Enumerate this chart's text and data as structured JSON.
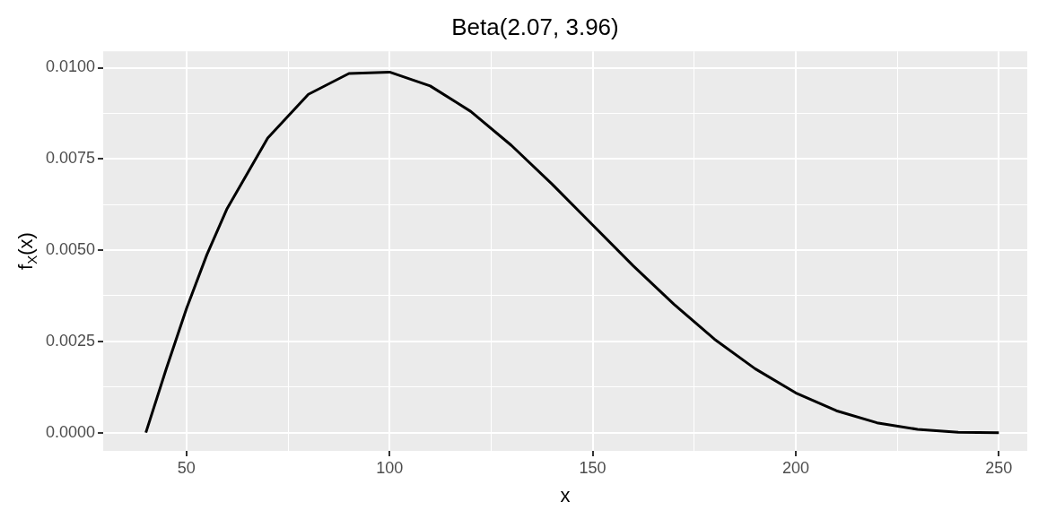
{
  "chart_data": {
    "type": "line",
    "title": "Beta(2.07, 3.96)",
    "xlabel": "x",
    "ylabel": "f$_{X}$(x)",
    "x": [
      40,
      45,
      50,
      55,
      60,
      70,
      80,
      90,
      100,
      110,
      120,
      130,
      140,
      150,
      160,
      170,
      180,
      190,
      200,
      210,
      220,
      230,
      240,
      250
    ],
    "values": [
      0,
      0.00174,
      0.0034,
      0.00487,
      0.00614,
      0.00807,
      0.00927,
      0.00984,
      0.00988,
      0.0095,
      0.0088,
      0.00787,
      0.00681,
      0.00569,
      0.00457,
      0.00352,
      0.00256,
      0.00175,
      0.00109,
      0.0006,
      0.00027,
      9e-05,
      1e-05,
      0
    ],
    "color": "#000000",
    "xlim": [
      29.5,
      257
    ],
    "xticks": [
      50,
      {
        "value": 75,
        "label": null
      },
      100,
      {
        "value": 125,
        "label": null
      },
      150,
      {
        "value": 175,
        "label": null
      },
      200,
      {
        "value": 225,
        "label": null
      },
      250
    ],
    "ylim": [
      -0.0005,
      0.01045
    ],
    "yticks": [
      {
        "value": 0,
        "label": "0.0000"
      },
      {
        "value": 0.00125,
        "label": null
      },
      {
        "value": 0.0025,
        "label": "0.0025"
      },
      {
        "value": 0.00375,
        "label": null
      },
      {
        "value": 0.005,
        "label": "0.0050"
      },
      {
        "value": 0.00625,
        "label": null
      },
      {
        "value": 0.0075,
        "label": "0.0075"
      },
      {
        "value": 0.00875,
        "label": null
      },
      {
        "value": 0.01,
        "label": "0.0100"
      }
    ],
    "grid": true
  }
}
